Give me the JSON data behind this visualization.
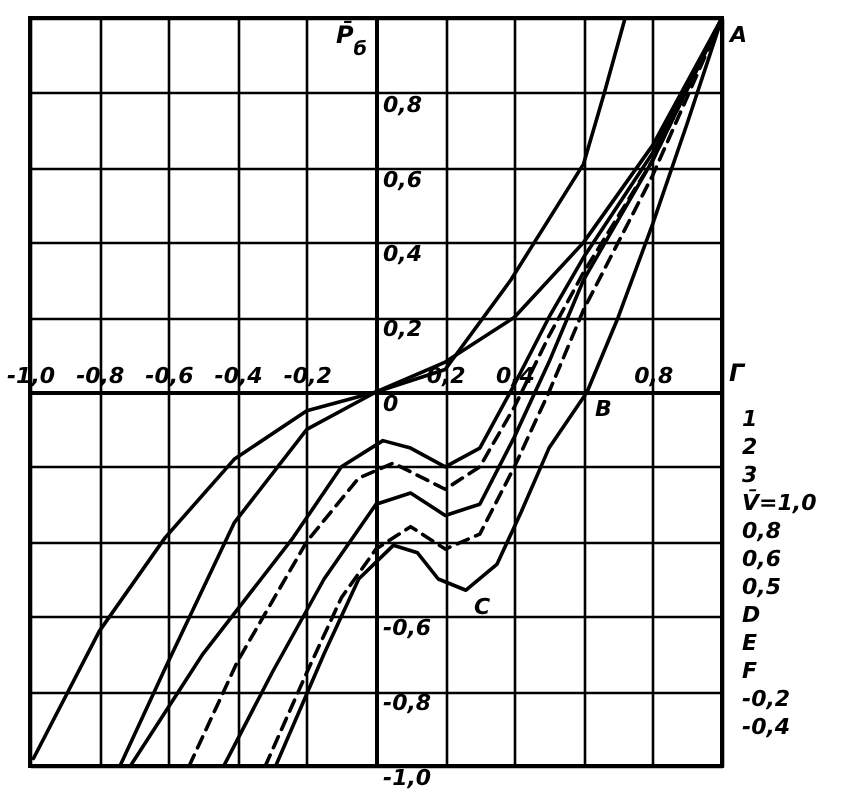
{
  "chart_data": {
    "type": "line",
    "xlabel": "Г",
    "ylabel": "P̄$_{б}$",
    "xlim": [
      -1,
      1
    ],
    "ylim": [
      -1,
      1
    ],
    "xticks": [
      {
        "value": -1,
        "label": "-1,0"
      },
      {
        "value": -0.8,
        "label": "-0,8"
      },
      {
        "value": -0.6,
        "label": "-0,6"
      },
      {
        "value": -0.4,
        "label": "-0,4"
      },
      {
        "value": -0.2,
        "label": "-0,2"
      },
      {
        "value": 0,
        "label": null
      },
      {
        "value": 0.2,
        "label": "0,2"
      },
      {
        "value": 0.4,
        "label": "0,4"
      },
      {
        "value": 0.6,
        "label": null
      },
      {
        "value": 0.8,
        "label": "0,8"
      },
      {
        "value": 1,
        "label": null
      }
    ],
    "yticks": [
      {
        "value": -1,
        "label": "-1,0"
      },
      {
        "value": -0.8,
        "label": "-0,8"
      },
      {
        "value": -0.6,
        "label": "-0,6"
      },
      {
        "value": -0.4,
        "label": null
      },
      {
        "value": -0.2,
        "label": null
      },
      {
        "value": 0,
        "label": "0"
      },
      {
        "value": 0.2,
        "label": "0,2"
      },
      {
        "value": 0.4,
        "label": "0,4"
      },
      {
        "value": 0.6,
        "label": "0,6"
      },
      {
        "value": 0.8,
        "label": "0,8"
      },
      {
        "value": 1,
        "label": null
      }
    ],
    "grid": true,
    "marker": "none",
    "series": [
      {
        "color": "#000000",
        "line_style": "solid",
        "x": [
          -0.99,
          -0.8,
          -0.61,
          -0.41,
          -0.2,
          0,
          0.2,
          0.39,
          0.6,
          0.66,
          0.72
        ],
        "values": [
          -0.98,
          -0.64,
          -0.39,
          -0.18,
          -0.05,
          0,
          0.06,
          0.3,
          0.61,
          0.8,
          1.0
        ]
      },
      {
        "color": "#000000",
        "line_style": "solid",
        "x": [
          -0.74,
          -0.61,
          -0.41,
          -0.2,
          0,
          0.2,
          0.4,
          0.6,
          0.8,
          1
        ],
        "values": [
          -1,
          -0.74,
          -0.35,
          -0.1,
          0,
          0.08,
          0.2,
          0.4,
          0.66,
          1
        ]
      },
      {
        "color": "#000000",
        "line_style": "solid",
        "x": [
          -0.71,
          -0.5,
          -0.24,
          -0.1,
          0.02,
          0.1,
          0.2,
          0.3,
          0.4,
          0.5,
          0.6,
          0.8,
          1
        ],
        "values": [
          -1,
          -0.7,
          -0.39,
          -0.2,
          -0.13,
          -0.15,
          -0.2,
          -0.15,
          0.02,
          0.2,
          0.36,
          0.64,
          1
        ]
      },
      {
        "color": "#000000",
        "line_style": "dashed",
        "x": [
          -0.54,
          -0.4,
          -0.2,
          -0.05,
          0.05,
          0.2,
          0.3,
          0.4,
          0.5,
          0.6,
          0.8,
          1
        ],
        "values": [
          -1,
          -0.72,
          -0.4,
          -0.23,
          -0.19,
          -0.26,
          -0.2,
          -0.04,
          0.15,
          0.32,
          0.62,
          1
        ]
      },
      {
        "color": "#000000",
        "line_style": "solid",
        "x": [
          -0.44,
          -0.3,
          -0.15,
          0,
          0.1,
          0.2,
          0.3,
          0.4,
          0.5,
          0.6,
          0.8,
          1
        ],
        "values": [
          -1,
          -0.75,
          -0.5,
          -0.3,
          -0.27,
          -0.33,
          -0.3,
          -0.12,
          0.08,
          0.3,
          0.62,
          1
        ]
      },
      {
        "color": "#000000",
        "line_style": "dashed",
        "x": [
          -0.32,
          -0.2,
          -0.1,
          0,
          0.1,
          0.2,
          0.3,
          0.4,
          0.5,
          0.6,
          0.8,
          1
        ],
        "values": [
          -1,
          -0.75,
          -0.55,
          -0.42,
          -0.36,
          -0.42,
          -0.38,
          -0.2,
          0,
          0.22,
          0.58,
          1
        ]
      },
      {
        "color": "#000000",
        "line_style": "solid",
        "x": [
          -0.29,
          -0.15,
          -0.05,
          0.05,
          0.12,
          0.18,
          0.26,
          0.35,
          0.42,
          0.5,
          0.61,
          0.7,
          0.8,
          0.9,
          1
        ],
        "values": [
          -1,
          -0.7,
          -0.5,
          -0.41,
          -0.43,
          -0.5,
          -0.53,
          -0.46,
          -0.32,
          -0.15,
          0,
          0.2,
          0.45,
          0.72,
          1
        ]
      }
    ],
    "annotations": [
      {
        "text": "A",
        "x": 1,
        "y": 1
      },
      {
        "text": "B",
        "x": 0.61,
        "y": 0
      },
      {
        "text": "C",
        "x": 0.26,
        "y": -0.53
      },
      "1",
      "2",
      "3",
      "V̄=1,0",
      "0,8",
      "0,6",
      "0,5",
      "D",
      "E",
      "F",
      "-0,2",
      "-0,4"
    ]
  }
}
